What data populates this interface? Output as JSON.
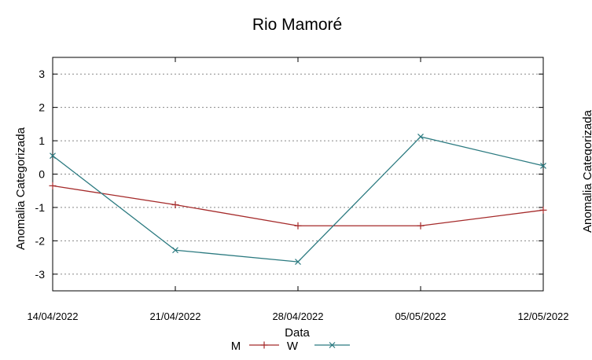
{
  "chart_data": {
    "type": "line",
    "title": "Rio Mamoré",
    "xlabel": "Data",
    "ylabel": "Anomalia Categorizada",
    "y2label_partial": "Anomalia Categorizada",
    "categories": [
      "14/04/2022",
      "21/04/2022",
      "28/04/2022",
      "05/05/2022",
      "12/05/2022"
    ],
    "x_tick_labels": [
      "14/04/2022",
      "21/04/2022",
      "28/04/2022",
      "05/05/2022",
      "12/05/2022"
    ],
    "y_ticks": [
      3,
      2,
      1,
      0,
      -1,
      -2,
      -3
    ],
    "y_tick_labels": [
      "3",
      "2",
      "1",
      "0",
      "-1",
      "-2",
      "-3"
    ],
    "ylim": [
      -3.5,
      3.5
    ],
    "grid": "horizontal dotted",
    "legend_position": "bottom",
    "series": [
      {
        "name": "M",
        "color": "#a52a2a",
        "marker": "plus",
        "values": [
          -0.35,
          -0.92,
          -1.55,
          -1.55,
          -1.08
        ]
      },
      {
        "name": "W",
        "color": "#2b7a80",
        "marker": "cross",
        "values": [
          0.55,
          -2.28,
          -2.63,
          1.12,
          0.25
        ]
      }
    ]
  }
}
